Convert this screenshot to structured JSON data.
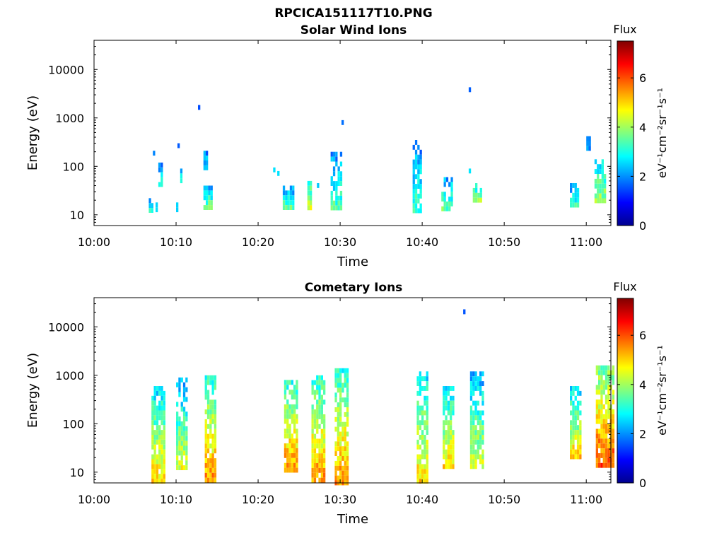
{
  "figure": {
    "title": "RPCICA151117T10.PNG"
  },
  "chart_data": [
    {
      "type": "heatmap",
      "title": "Solar Wind Ions",
      "xlabel": "Time",
      "ylabel": "Energy (eV)",
      "x_axis": {
        "type": "time",
        "range": [
          "10:00",
          "11:03"
        ],
        "ticks": [
          "10:00",
          "10:10",
          "10:20",
          "10:30",
          "10:40",
          "10:50",
          "11:00"
        ]
      },
      "y_axis": {
        "scale": "log",
        "range": [
          6,
          40000
        ],
        "ticks": [
          "10",
          "100",
          "1000",
          "10000"
        ],
        "tick_values": [
          10,
          100,
          1000,
          10000
        ]
      },
      "colorbar": {
        "label": "Flux",
        "units": "eV⁻¹cm⁻²sr⁻¹s⁻¹",
        "range": [
          0,
          7.5
        ],
        "ticks": [
          "0",
          "2",
          "4",
          "6"
        ],
        "tick_values": [
          0,
          2,
          4,
          6
        ],
        "colormap": "jet"
      },
      "clusters": [
        {
          "t": "10:06:40",
          "dur_min": 0.6,
          "emin": 12,
          "emax": 22,
          "flux": 3.2,
          "spread": 0.8
        },
        {
          "t": "10:07:10",
          "dur_min": 0.3,
          "emin": 150,
          "emax": 210,
          "flux": 2.6,
          "spread": 0.4
        },
        {
          "t": "10:07:30",
          "dur_min": 0.3,
          "emin": 12,
          "emax": 18,
          "flux": 3.0,
          "spread": 0.5
        },
        {
          "t": "10:07:50",
          "dur_min": 0.5,
          "emin": 40,
          "emax": 120,
          "flux": 2.8,
          "spread": 0.5
        },
        {
          "t": "10:10:00",
          "dur_min": 0.3,
          "emin": 12,
          "emax": 18,
          "flux": 2.8,
          "spread": 0.4
        },
        {
          "t": "10:10:10",
          "dur_min": 0.2,
          "emin": 280,
          "emax": 300,
          "flux": 2.2,
          "spread": 0.1
        },
        {
          "t": "10:10:30",
          "dur_min": 0.4,
          "emin": 50,
          "emax": 90,
          "flux": 2.8,
          "spread": 0.4
        },
        {
          "t": "10:12:40",
          "dur_min": 0.2,
          "emin": 1800,
          "emax": 1850,
          "flux": 1.5,
          "spread": 0.1
        },
        {
          "t": "10:13:20",
          "dur_min": 1.0,
          "emin": 12,
          "emax": 40,
          "flux": 3.8,
          "spread": 0.9
        },
        {
          "t": "10:13:20",
          "dur_min": 0.6,
          "emin": 80,
          "emax": 210,
          "flux": 2.6,
          "spread": 0.5
        },
        {
          "t": "10:21:50",
          "dur_min": 0.3,
          "emin": 85,
          "emax": 95,
          "flux": 2.5,
          "spread": 0.2
        },
        {
          "t": "10:22:20",
          "dur_min": 0.3,
          "emin": 70,
          "emax": 80,
          "flux": 2.5,
          "spread": 0.2
        },
        {
          "t": "10:23:00",
          "dur_min": 1.3,
          "emin": 12,
          "emax": 40,
          "flux": 3.5,
          "spread": 0.9
        },
        {
          "t": "10:26:00",
          "dur_min": 0.7,
          "emin": 12,
          "emax": 50,
          "flux": 4.3,
          "spread": 0.8
        },
        {
          "t": "10:27:10",
          "dur_min": 0.3,
          "emin": 35,
          "emax": 45,
          "flux": 2.5,
          "spread": 0.3
        },
        {
          "t": "10:28:50",
          "dur_min": 1.5,
          "emin": 12,
          "emax": 200,
          "flux": 3.4,
          "spread": 0.9
        },
        {
          "t": "10:30:10",
          "dur_min": 0.2,
          "emin": 880,
          "emax": 900,
          "flux": 1.6,
          "spread": 0.1
        },
        {
          "t": "10:38:50",
          "dur_min": 1.0,
          "emin": 12,
          "emax": 350,
          "flux": 3.3,
          "spread": 0.9
        },
        {
          "t": "10:42:20",
          "dur_min": 1.5,
          "emin": 12,
          "emax": 60,
          "flux": 3.5,
          "spread": 0.8
        },
        {
          "t": "10:45:40",
          "dur_min": 0.2,
          "emin": 4200,
          "emax": 4300,
          "flux": 1.5,
          "spread": 0.1
        },
        {
          "t": "10:45:40",
          "dur_min": 0.3,
          "emin": 80,
          "emax": 90,
          "flux": 2.6,
          "spread": 0.2
        },
        {
          "t": "10:46:10",
          "dur_min": 1.0,
          "emin": 18,
          "emax": 45,
          "flux": 4.0,
          "spread": 0.7
        },
        {
          "t": "10:58:00",
          "dur_min": 1.0,
          "emin": 14,
          "emax": 45,
          "flux": 3.2,
          "spread": 0.8
        },
        {
          "t": "11:00:00",
          "dur_min": 0.5,
          "emin": 200,
          "emax": 420,
          "flux": 2.2,
          "spread": 0.3
        },
        {
          "t": "11:01:00",
          "dur_min": 1.5,
          "emin": 18,
          "emax": 140,
          "flux": 4.0,
          "spread": 0.9
        }
      ]
    },
    {
      "type": "heatmap",
      "title": "Cometary Ions",
      "xlabel": "Time",
      "ylabel": "Energy (eV)",
      "x_axis": {
        "type": "time",
        "range": [
          "10:00",
          "11:03"
        ],
        "ticks": [
          "10:00",
          "10:10",
          "10:20",
          "10:30",
          "10:40",
          "10:50",
          "11:00"
        ]
      },
      "y_axis": {
        "scale": "log",
        "range": [
          6,
          40000
        ],
        "ticks": [
          "10",
          "100",
          "1000",
          "10000"
        ],
        "tick_values": [
          10,
          100,
          1000,
          10000
        ]
      },
      "colorbar": {
        "label": "Flux",
        "units": "eV⁻¹cm⁻²sr⁻¹s⁻¹",
        "range": [
          0,
          7.5
        ],
        "ticks": [
          "0",
          "2",
          "4",
          "6"
        ],
        "tick_values": [
          0,
          2,
          4,
          6
        ],
        "colormap": "jet"
      },
      "clusters": [
        {
          "t": "10:07:00",
          "dur_min": 1.8,
          "emin": 6,
          "emax": 600,
          "flux": 5.0,
          "spread": 1.5
        },
        {
          "t": "10:10:00",
          "dur_min": 1.5,
          "emin": 10,
          "emax": 900,
          "flux": 4.5,
          "spread": 1.5
        },
        {
          "t": "10:13:30",
          "dur_min": 1.5,
          "emin": 6,
          "emax": 1000,
          "flux": 5.5,
          "spread": 1.5
        },
        {
          "t": "10:23:10",
          "dur_min": 1.8,
          "emin": 10,
          "emax": 800,
          "flux": 5.5,
          "spread": 1.5
        },
        {
          "t": "10:26:30",
          "dur_min": 1.6,
          "emin": 6,
          "emax": 1000,
          "flux": 5.5,
          "spread": 1.5
        },
        {
          "t": "10:29:20",
          "dur_min": 1.8,
          "emin": 6,
          "emax": 1400,
          "flux": 5.5,
          "spread": 1.5
        },
        {
          "t": "10:39:20",
          "dur_min": 1.5,
          "emin": 6,
          "emax": 1200,
          "flux": 5.0,
          "spread": 1.5
        },
        {
          "t": "10:42:30",
          "dur_min": 1.5,
          "emin": 12,
          "emax": 600,
          "flux": 5.0,
          "spread": 1.5
        },
        {
          "t": "10:45:00",
          "dur_min": 0.2,
          "emin": 22000,
          "emax": 23000,
          "flux": 1.5,
          "spread": 0.1
        },
        {
          "t": "10:45:50",
          "dur_min": 1.8,
          "emin": 12,
          "emax": 1200,
          "flux": 4.5,
          "spread": 1.5
        },
        {
          "t": "10:58:00",
          "dur_min": 1.3,
          "emin": 18,
          "emax": 600,
          "flux": 5.0,
          "spread": 1.5
        },
        {
          "t": "11:01:10",
          "dur_min": 2.2,
          "emin": 12,
          "emax": 1600,
          "flux": 6.0,
          "spread": 1.5
        }
      ]
    }
  ]
}
